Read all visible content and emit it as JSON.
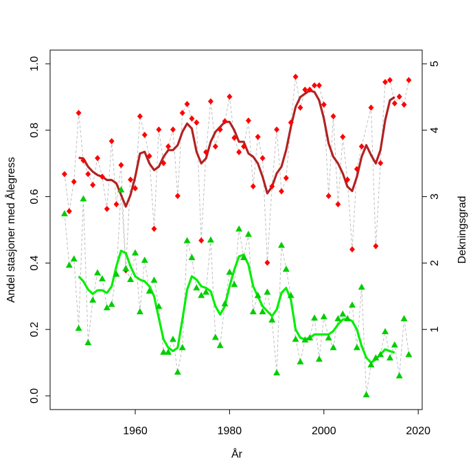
{
  "chart_data": {
    "type": "line",
    "title": "",
    "xlabel": "År",
    "ylabel": "Andel stasjoner med Ålegress",
    "ylabel_right": "Dekningsgrad",
    "xlim": [
      1943,
      2021
    ],
    "ylim": [
      -0.04,
      1.04
    ],
    "x_ticks": [
      "1960",
      "1980",
      "2000",
      "2020"
    ],
    "y_ticks": [
      "0.0",
      "0.2",
      "0.4",
      "0.6",
      "0.8",
      "1.0"
    ],
    "y_right_ticks": [
      "1",
      "2",
      "3",
      "4",
      "5"
    ],
    "grid": false,
    "x_start": 1945,
    "series": [
      {
        "name": "Andel stasjoner med Ålegress",
        "marker": "diamond",
        "color": "#ff0000",
        "values": [
          0.668,
          0.556,
          0.645,
          0.852,
          0.709,
          0.668,
          0.635,
          0.716,
          0.66,
          0.563,
          0.767,
          0.577,
          0.695,
          0.378,
          0.651,
          0.625,
          0.842,
          0.786,
          0.722,
          0.503,
          0.802,
          0.701,
          0.751,
          0.802,
          0.602,
          0.852,
          0.879,
          0.835,
          0.823,
          0.468,
          0.734,
          0.887,
          0.751,
          0.802,
          0.827,
          0.901,
          0.777,
          0.734,
          0.751,
          0.829,
          0.631,
          0.78,
          0.716,
          0.401,
          0.631,
          0.802,
          0.616,
          0.656,
          0.823,
          0.961,
          0.868,
          0.922,
          0.922,
          0.935,
          0.935,
          0.877,
          0.602,
          0.842,
          0.577,
          0.78,
          0.651,
          0.441,
          0.683,
          0.751,
          null,
          0.868,
          0.451,
          0.701,
          0.945,
          0.951,
          0.881,
          0.901,
          0.877,
          0.951
        ]
      },
      {
        "name": "Dekningsgrad",
        "marker": "triangle",
        "color": "#00cd00",
        "values": [
          0.549,
          0.394,
          0.413,
          0.204,
          0.594,
          0.161,
          0.289,
          0.371,
          0.353,
          0.266,
          0.276,
          0.367,
          0.621,
          0.384,
          0.351,
          0.431,
          0.254,
          0.409,
          0.316,
          0.349,
          0.27,
          0.132,
          0.132,
          0.171,
          0.072,
          0.146,
          0.468,
          0.417,
          0.326,
          0.303,
          0.313,
          0.47,
          0.177,
          0.152,
          0.278,
          0.373,
          0.336,
          0.503,
          0.417,
          0.487,
          0.254,
          0.303,
          0.254,
          0.313,
          0.229,
          0.07,
          0.454,
          0.382,
          0.303,
          0.171,
          0.103,
          0.169,
          0.175,
          0.235,
          0.111,
          0.239,
          0.175,
          0.146,
          0.233,
          0.247,
          0.233,
          0.274,
          0.146,
          0.328,
          0.004,
          0.094,
          0.115,
          0.125,
          0.194,
          0.115,
          0.154,
          0.061,
          0.233,
          0.125
        ]
      }
    ],
    "smoothed": [
      {
        "name": "Andel stasjoner med Ålegress (glattet)",
        "color": "#b22222",
        "x_start": 1948,
        "values": [
          0.717,
          0.715,
          0.69,
          0.675,
          0.665,
          0.66,
          0.65,
          0.65,
          0.64,
          0.605,
          0.57,
          0.605,
          0.66,
          0.73,
          0.735,
          0.7,
          0.68,
          0.69,
          0.72,
          0.74,
          0.74,
          0.755,
          0.795,
          0.82,
          0.805,
          0.735,
          0.7,
          0.715,
          0.765,
          0.795,
          0.81,
          0.825,
          0.825,
          0.8,
          0.765,
          0.765,
          0.73,
          0.72,
          0.7,
          0.66,
          0.61,
          0.63,
          0.67,
          0.69,
          0.74,
          0.81,
          0.87,
          0.9,
          0.91,
          0.92,
          0.915,
          0.89,
          0.835,
          0.76,
          0.72,
          0.7,
          0.67,
          0.63,
          0.617,
          0.66,
          0.72,
          0.755,
          0.725,
          0.7,
          0.74,
          0.83,
          0.89,
          0.9
        ]
      },
      {
        "name": "Dekningsgrad (glattet)",
        "color": "#00ee00",
        "x_start": 1948,
        "values": [
          0.36,
          0.345,
          0.32,
          0.307,
          0.318,
          0.318,
          0.31,
          0.33,
          0.39,
          0.437,
          0.43,
          0.39,
          0.36,
          0.35,
          0.345,
          0.33,
          0.3,
          0.235,
          0.17,
          0.145,
          0.135,
          0.145,
          0.23,
          0.32,
          0.36,
          0.35,
          0.33,
          0.325,
          0.315,
          0.27,
          0.245,
          0.27,
          0.33,
          0.38,
          0.42,
          0.425,
          0.395,
          0.33,
          0.3,
          0.27,
          0.255,
          0.24,
          0.26,
          0.31,
          0.325,
          0.29,
          0.2,
          0.175,
          0.17,
          0.175,
          0.185,
          0.185,
          0.185,
          0.185,
          0.195,
          0.215,
          0.23,
          0.232,
          0.225,
          0.2,
          0.15,
          0.115,
          0.1,
          0.11,
          0.125,
          0.14,
          0.135,
          0.13
        ]
      }
    ]
  }
}
